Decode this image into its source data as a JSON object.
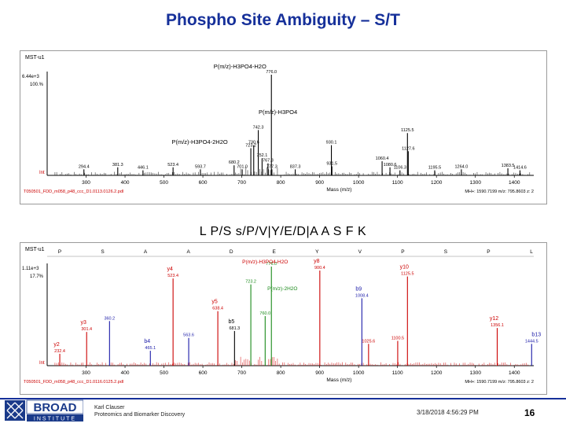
{
  "slide": {
    "title": "Phospho Site Ambiguity – S/T",
    "sequence": "L P/S s/P/V|Y/E/D|A A S F K",
    "author_line1": "Karl Clauser",
    "author_line2": "Proteomics and Biomarker Discovery",
    "date": "3/18/2018 4:56:29 PM",
    "page_number": "16",
    "logo_top": "BROAD",
    "logo_bottom": "INSTITUTE"
  },
  "colors": {
    "title": "#16309a",
    "red": "#cc0000",
    "blue": "#1a1aa8",
    "green": "#1a8a1a",
    "black": "#000000",
    "gray": "#555555"
  },
  "chart_data": [
    {
      "type": "bar",
      "header_label": "MST-u1",
      "intensity_scale": "6.44e+3",
      "percent_label": "100.%",
      "xlim": [
        200,
        1450
      ],
      "ylim": [
        0,
        100
      ],
      "xticks": [
        300,
        400,
        500,
        600,
        700,
        800,
        900,
        1000,
        1100,
        1200,
        1300,
        1400
      ],
      "xlabel": "Mass (m/z)",
      "ylabel_bottom": "Int",
      "footer_left": "T050501_FDD_m058_p48_ccc_D1.0113.0126.2.pdl",
      "footer_right": "MH+: 1590.7199   m/z: 795.8603   z: 2",
      "peaks": [
        {
          "x": 294.4,
          "y": 6,
          "label": "294.4"
        },
        {
          "x": 381.3,
          "y": 8,
          "label": "381.3"
        },
        {
          "x": 446.1,
          "y": 5,
          "label": "446.1"
        },
        {
          "x": 523.4,
          "y": 8,
          "label": "523.4"
        },
        {
          "x": 593.7,
          "y": 6,
          "label": "593.7"
        },
        {
          "x": 680.2,
          "y": 10,
          "label": "680.2"
        },
        {
          "x": 701.0,
          "y": 6,
          "label": "701.0"
        },
        {
          "x": 723.2,
          "y": 27,
          "label": "723.2"
        },
        {
          "x": 730.6,
          "y": 30,
          "label": "730.6"
        },
        {
          "x": 742.3,
          "y": 45,
          "label": "742.3"
        },
        {
          "x": 752.1,
          "y": 17,
          "label": "752.1"
        },
        {
          "x": 767.3,
          "y": 12,
          "label": "767.3"
        },
        {
          "x": 777.3,
          "y": 6,
          "label": "777.3"
        },
        {
          "x": 837.3,
          "y": 6,
          "label": "837.3"
        },
        {
          "x": 930.1,
          "y": 30,
          "label": "930.1"
        },
        {
          "x": 931.5,
          "y": 9,
          "label": "931.5"
        },
        {
          "x": 1060.4,
          "y": 14,
          "label": "1060.4"
        },
        {
          "x": 1080.6,
          "y": 8,
          "label": "1080.6"
        },
        {
          "x": 1106.3,
          "y": 5,
          "label": "1106.3"
        },
        {
          "x": 1125.5,
          "y": 42,
          "label": "1125.5"
        },
        {
          "x": 1127.6,
          "y": 24,
          "label": "1127.6"
        },
        {
          "x": 1195.5,
          "y": 5,
          "label": "1195.5"
        },
        {
          "x": 1264.0,
          "y": 6,
          "label": "1264.0"
        },
        {
          "x": 1383.5,
          "y": 7,
          "label": "1383.5"
        },
        {
          "x": 1414.6,
          "y": 5,
          "label": "1414.6"
        },
        {
          "x": 776.0,
          "y": 100,
          "label": "776.0"
        }
      ],
      "annotations": [
        {
          "text": "P(m/z)-H3PO4-H2O",
          "x": 776.0
        },
        {
          "text": "P(m/z)-H3PO4",
          "x": 742.3
        },
        {
          "text": "P(m/z)-H3PO4-2H2O",
          "x": 723.2
        }
      ]
    },
    {
      "type": "bar",
      "header_label": "MST-u1",
      "intensity_scale": "1.11e+3",
      "percent_label": "17.7%",
      "xlim": [
        200,
        1450
      ],
      "ylim": [
        0,
        100
      ],
      "xticks": [
        300,
        400,
        500,
        600,
        700,
        800,
        900,
        1000,
        1100,
        1200,
        1300,
        1400
      ],
      "xlabel": "Mass (m/z)",
      "ylabel_bottom": "Int",
      "footer_left": "T050501_FDD_m058_p48_ccc_D1.0116.0125.2.pdl",
      "footer_right": "MH+: 1590.7199   m/z: 795.8603   z: 2",
      "sequence_letters": [
        "P",
        "S",
        "A",
        "A",
        "D",
        "E",
        "Y",
        "V",
        "P",
        "S",
        "P",
        "L"
      ],
      "peaks": [
        {
          "x": 232.4,
          "y": 12,
          "label": "232.4",
          "color": "red"
        },
        {
          "x": 301.4,
          "y": 34,
          "label": "301.4",
          "color": "red"
        },
        {
          "x": 360.2,
          "y": 45,
          "label": "360.2",
          "color": "blue"
        },
        {
          "x": 465.1,
          "y": 15,
          "label": "465.1",
          "color": "blue"
        },
        {
          "x": 523.4,
          "y": 88,
          "label": "523.4",
          "color": "red"
        },
        {
          "x": 563.6,
          "y": 28,
          "label": "563.6",
          "color": "blue"
        },
        {
          "x": 638.4,
          "y": 55,
          "label": "638.4",
          "color": "red"
        },
        {
          "x": 681.3,
          "y": 35,
          "label": "681.3",
          "color": "black"
        },
        {
          "x": 723.2,
          "y": 82,
          "label": "723.2",
          "color": "green"
        },
        {
          "x": 760.0,
          "y": 50,
          "label": "760.0",
          "color": "green"
        },
        {
          "x": 776.0,
          "y": 100,
          "label": "776.0",
          "color": "green"
        },
        {
          "x": 900.4,
          "y": 96,
          "label": "900.4",
          "color": "red"
        },
        {
          "x": 1008.4,
          "y": 68,
          "label": "1008.4",
          "color": "blue"
        },
        {
          "x": 1025.6,
          "y": 22,
          "label": "1025.6",
          "color": "red"
        },
        {
          "x": 1100.5,
          "y": 25,
          "label": "1100.5",
          "color": "red"
        },
        {
          "x": 1125.5,
          "y": 90,
          "label": "1125.5",
          "color": "red"
        },
        {
          "x": 1356.1,
          "y": 38,
          "label": "1356.1",
          "color": "red"
        },
        {
          "x": 1444.5,
          "y": 22,
          "label": "1444.5",
          "color": "blue"
        }
      ],
      "labels": [
        {
          "text": "y4",
          "x": 523.4,
          "color": "red"
        },
        {
          "text": "y8",
          "x": 900.4,
          "color": "red"
        },
        {
          "text": "b9",
          "x": 1008.4,
          "color": "blue"
        },
        {
          "text": "y10",
          "x": 1125.5,
          "color": "red"
        },
        {
          "text": "y5",
          "x": 638.4,
          "color": "red"
        },
        {
          "text": "b5",
          "x": 681.3,
          "color": "black"
        },
        {
          "text": "y3",
          "x": 301.4,
          "color": "red"
        },
        {
          "text": "b4",
          "x": 465.1,
          "color": "blue"
        },
        {
          "text": "y2",
          "x": 232.4,
          "color": "red"
        },
        {
          "text": "y12",
          "x": 1356.1,
          "color": "red"
        },
        {
          "text": "b13",
          "x": 1444.5,
          "color": "blue"
        }
      ],
      "annotations": [
        {
          "text": "P(m/z)-H3PO4-H2O",
          "x": 776.0,
          "color": "red"
        },
        {
          "text": "P(m/z)-2H2O",
          "x": 760.0,
          "color": "green"
        }
      ]
    }
  ]
}
